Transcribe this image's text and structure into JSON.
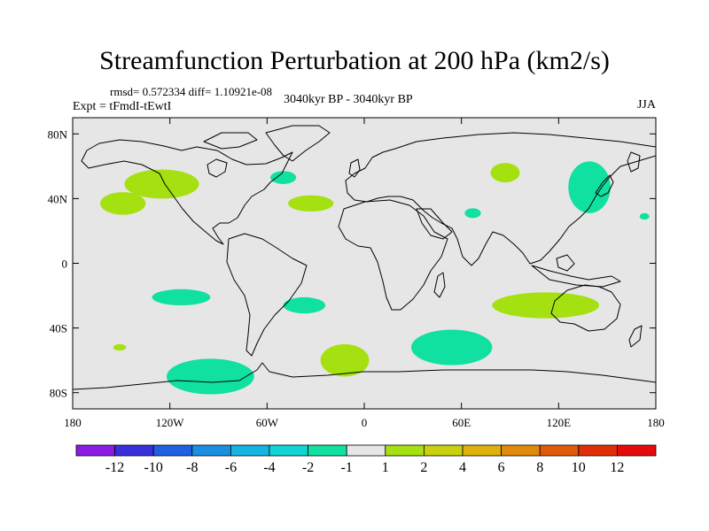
{
  "chart_data": {
    "type": "map",
    "title": "Streamfunction Perturbation at 200 hPa (km2/s)",
    "stats": "rmsd= 0.572334 diff= 1.10921e-08",
    "experiment": "Expt = tFmdI-tEwtI",
    "period": "3040kyr BP - 3040kyr BP",
    "season": "JJA",
    "x_ticks": [
      "180",
      "120W",
      "60W",
      "0",
      "60E",
      "120E",
      "180"
    ],
    "y_ticks": [
      "80N",
      "40N",
      "0",
      "40S",
      "80S"
    ],
    "lon_range": [
      -180,
      180
    ],
    "lat_range": [
      -90,
      90
    ],
    "tick_lons": [
      -180,
      -120,
      -60,
      0,
      60,
      120,
      180
    ],
    "tick_lats": [
      80,
      40,
      0,
      -40,
      -80
    ],
    "colorbar": {
      "labels": [
        "-12",
        "-10",
        "-8",
        "-6",
        "-4",
        "-2",
        "-1",
        "1",
        "2",
        "4",
        "6",
        "8",
        "10",
        "12"
      ],
      "colors": [
        "#8a1ce6",
        "#3a2fdc",
        "#1f5fe0",
        "#1a8ee0",
        "#14b4e0",
        "#12d4d4",
        "#10e0a0",
        "#e6e6e6",
        "#a5e010",
        "#c8d010",
        "#e0b00f",
        "#e08a0c",
        "#e05a0a",
        "#e02e08",
        "#e60a0a"
      ]
    },
    "regions": [
      {
        "level": "1 to 2",
        "color": "#a5e010",
        "center": [
          -125,
          49
        ],
        "radius": [
          23,
          9
        ]
      },
      {
        "level": "1 to 2",
        "color": "#a5e010",
        "center": [
          -149,
          37
        ],
        "radius": [
          14,
          7
        ]
      },
      {
        "level": "1 to 2",
        "color": "#a5e010",
        "center": [
          -33,
          37
        ],
        "radius": [
          14,
          5
        ]
      },
      {
        "level": "1 to 2",
        "color": "#a5e010",
        "center": [
          87,
          56
        ],
        "radius": [
          9,
          6
        ]
      },
      {
        "level": "1 to 2",
        "color": "#a5e010",
        "center": [
          112,
          -26
        ],
        "radius": [
          33,
          8
        ]
      },
      {
        "level": "1 to 2",
        "color": "#a5e010",
        "center": [
          -12,
          -60
        ],
        "radius": [
          15,
          10
        ]
      },
      {
        "level": "1 to 2",
        "color": "#a5e010",
        "center": [
          -151,
          -52
        ],
        "radius": [
          4,
          2
        ]
      },
      {
        "level": "-2 to -1",
        "color": "#10e0a0",
        "center": [
          -50,
          53
        ],
        "radius": [
          8,
          4
        ]
      },
      {
        "level": "-2 to -1",
        "color": "#10e0a0",
        "center": [
          139,
          47
        ],
        "radius": [
          13,
          16
        ]
      },
      {
        "level": "-2 to -1",
        "color": "#10e0a0",
        "center": [
          67,
          31
        ],
        "radius": [
          5,
          3
        ]
      },
      {
        "level": "-2 to -1",
        "color": "#10e0a0",
        "center": [
          173,
          29
        ],
        "radius": [
          3,
          2
        ]
      },
      {
        "level": "-2 to -1",
        "color": "#10e0a0",
        "center": [
          -113,
          -21
        ],
        "radius": [
          18,
          5
        ]
      },
      {
        "level": "-2 to -1",
        "color": "#10e0a0",
        "center": [
          -37,
          -26
        ],
        "radius": [
          13,
          5
        ]
      },
      {
        "level": "-2 to -1",
        "color": "#10e0a0",
        "center": [
          54,
          -52
        ],
        "radius": [
          25,
          11
        ]
      },
      {
        "level": "-2 to -1",
        "color": "#10e0a0",
        "center": [
          -95,
          -70
        ],
        "radius": [
          27,
          11
        ]
      }
    ]
  }
}
